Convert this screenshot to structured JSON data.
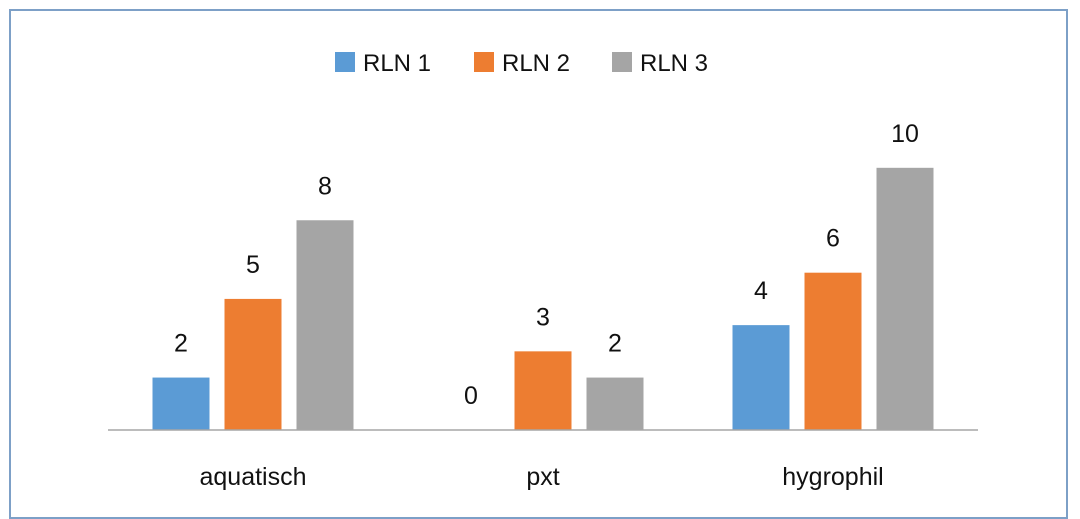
{
  "chart_data": {
    "type": "bar",
    "categories": [
      "aquatisch",
      "pxt",
      "hygrophil"
    ],
    "series": [
      {
        "name": "RLN 1",
        "values": [
          2,
          0,
          4
        ],
        "color": "#5b9bd5"
      },
      {
        "name": "RLN 2",
        "values": [
          5,
          3,
          6
        ],
        "color": "#ed7d31"
      },
      {
        "name": "RLN 3",
        "values": [
          8,
          2,
          10
        ],
        "color": "#a5a5a5"
      }
    ],
    "ylim": [
      0,
      11.9
    ],
    "grid": false,
    "legend_position": "top-center",
    "data_labels": true,
    "axis_color": "#a6a6a6"
  }
}
